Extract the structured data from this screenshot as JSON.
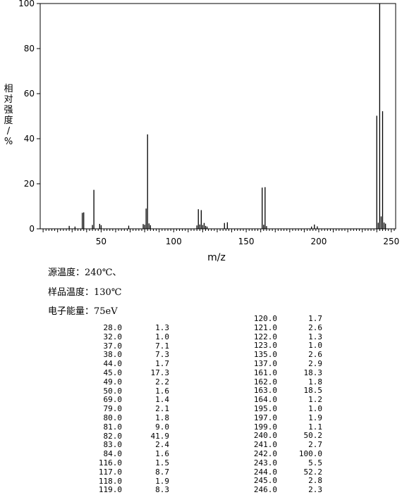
{
  "chart_data": {
    "type": "bar",
    "ylabel": "相对强度/%",
    "xlabel": "m/z",
    "xlim": [
      8,
      253
    ],
    "ylim": [
      0,
      100
    ],
    "xticks": [
      50,
      100,
      150,
      200,
      250
    ],
    "yticks": [
      0,
      20,
      40,
      60,
      80,
      100
    ],
    "x": [
      28,
      32,
      37,
      38,
      44,
      45,
      49,
      50,
      69,
      79,
      80,
      81,
      82,
      83,
      84,
      116,
      117,
      118,
      119,
      120,
      121,
      122,
      123,
      135,
      137,
      161,
      162,
      163,
      164,
      195,
      197,
      199,
      240,
      241,
      242,
      243,
      244,
      245,
      246
    ],
    "values": [
      1.3,
      1.0,
      7.1,
      7.3,
      1.7,
      17.3,
      2.2,
      1.6,
      1.4,
      2.1,
      1.8,
      9.0,
      41.9,
      2.4,
      1.6,
      1.5,
      8.7,
      1.9,
      8.3,
      1.7,
      2.6,
      1.3,
      1.0,
      2.6,
      2.9,
      18.3,
      1.8,
      18.5,
      1.2,
      1.0,
      1.9,
      1.1,
      50.2,
      2.7,
      100.0,
      5.5,
      52.2,
      2.8,
      2.3
    ]
  },
  "conditions": {
    "source_temp": "源温度：240℃、",
    "sample_temp": "样品温度：130℃",
    "electron_energy": "电子能量：75eV"
  },
  "peak_table": {
    "left": [
      {
        "mz": "28.0",
        "ab": "1.3"
      },
      {
        "mz": "32.0",
        "ab": "1.0"
      },
      {
        "mz": "37.0",
        "ab": "7.1"
      },
      {
        "mz": "38.0",
        "ab": "7.3"
      },
      {
        "mz": "44.0",
        "ab": "1.7"
      },
      {
        "mz": "45.0",
        "ab": "17.3"
      },
      {
        "mz": "49.0",
        "ab": "2.2"
      },
      {
        "mz": "50.0",
        "ab": "1.6"
      },
      {
        "mz": "69.0",
        "ab": "1.4"
      },
      {
        "mz": "79.0",
        "ab": "2.1"
      },
      {
        "mz": "80.0",
        "ab": "1.8"
      },
      {
        "mz": "81.0",
        "ab": "9.0"
      },
      {
        "mz": "82.0",
        "ab": "41.9"
      },
      {
        "mz": "83.0",
        "ab": "2.4"
      },
      {
        "mz": "84.0",
        "ab": "1.6"
      },
      {
        "mz": "116.0",
        "ab": "1.5"
      },
      {
        "mz": "117.0",
        "ab": "8.7"
      },
      {
        "mz": "118.0",
        "ab": "1.9"
      },
      {
        "mz": "119.0",
        "ab": "8.3"
      }
    ],
    "right": [
      {
        "mz": "120.0",
        "ab": "1.7"
      },
      {
        "mz": "121.0",
        "ab": "2.6"
      },
      {
        "mz": "122.0",
        "ab": "1.3"
      },
      {
        "mz": "123.0",
        "ab": "1.0"
      },
      {
        "mz": "135.0",
        "ab": "2.6"
      },
      {
        "mz": "137.0",
        "ab": "2.9"
      },
      {
        "mz": "161.0",
        "ab": "18.3"
      },
      {
        "mz": "162.0",
        "ab": "1.8"
      },
      {
        "mz": "163.0",
        "ab": "18.5"
      },
      {
        "mz": "164.0",
        "ab": "1.2"
      },
      {
        "mz": "195.0",
        "ab": "1.0"
      },
      {
        "mz": "197.0",
        "ab": "1.9"
      },
      {
        "mz": "199.0",
        "ab": "1.1"
      },
      {
        "mz": "240.0",
        "ab": "50.2"
      },
      {
        "mz": "241.0",
        "ab": "2.7"
      },
      {
        "mz": "242.0",
        "ab": "100.0"
      },
      {
        "mz": "243.0",
        "ab": "5.5"
      },
      {
        "mz": "244.0",
        "ab": "52.2"
      },
      {
        "mz": "245.0",
        "ab": "2.8"
      },
      {
        "mz": "246.0",
        "ab": "2.3"
      }
    ]
  }
}
